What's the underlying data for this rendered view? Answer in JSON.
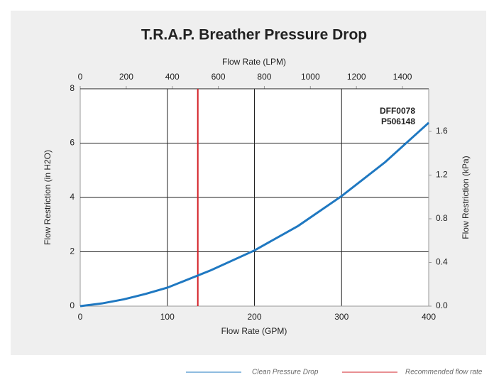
{
  "chart_data": {
    "type": "line",
    "title": "T.R.A.P. Breather Pressure Drop",
    "xlabel": "Flow Rate (GPM)",
    "x2label": "Flow Rate (LPM)",
    "ylabel": "Flow Restriction (in H2O)",
    "y2label": "Flow Restriction (kPa)",
    "x": [
      0,
      25,
      50,
      75,
      100,
      150,
      200,
      250,
      300,
      350,
      400
    ],
    "series": [
      {
        "name": "Clean Pressure Drop",
        "color": "#1f78c1",
        "values": [
          0,
          0.1,
          0.25,
          0.45,
          0.68,
          1.32,
          2.05,
          2.95,
          4.05,
          5.3,
          6.75
        ]
      }
    ],
    "reference_line": {
      "name": "Recommended flow rate",
      "color": "#d32027",
      "x": 135
    },
    "annotations": [
      "DFF0078",
      "P506148"
    ],
    "xlim": [
      0,
      400
    ],
    "xticks": [
      0,
      100,
      200,
      300,
      400
    ],
    "x2lim": [
      0,
      1514
    ],
    "x2ticks": [
      0,
      200,
      400,
      600,
      800,
      1000,
      1200,
      1400
    ],
    "ylim": [
      0,
      8
    ],
    "yticks": [
      0,
      2,
      4,
      6,
      8
    ],
    "y2lim": [
      0,
      1.99
    ],
    "y2ticks": [
      {
        "value": 0,
        "label": "0.0"
      },
      0.4,
      0.8,
      1.2,
      1.6
    ],
    "grid": true
  }
}
